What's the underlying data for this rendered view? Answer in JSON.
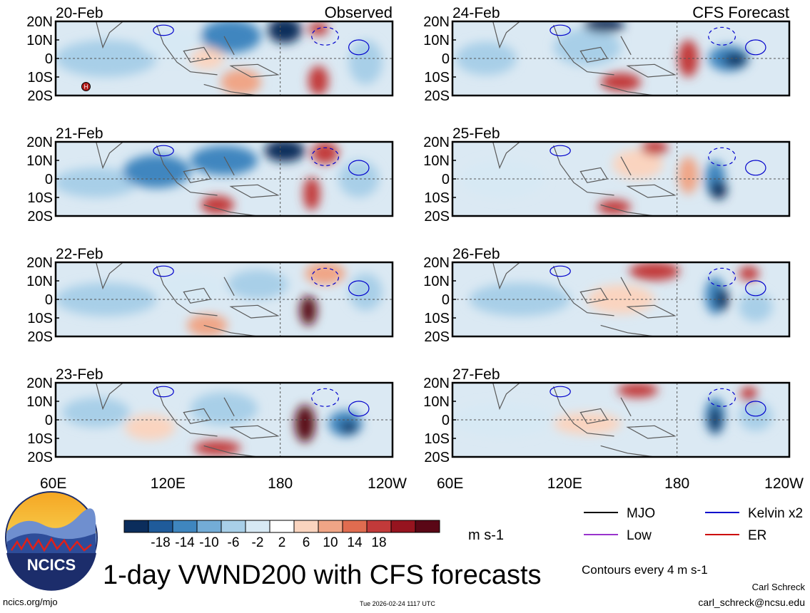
{
  "chart_data": {
    "type": "heatmap",
    "title": "1-day VWND200 with CFS forecasts",
    "variable": "VWND200",
    "units": "m s-1",
    "column_titles": {
      "observed": "Observed",
      "forecast": "CFS Forecast"
    },
    "x_ticks": [
      "60E",
      "120E",
      "180",
      "120W"
    ],
    "y_ticks": [
      "20N",
      "10N",
      "0",
      "10S",
      "20S"
    ],
    "lon_range": [
      60,
      240
    ],
    "lat_range": [
      -20,
      20
    ],
    "panels": [
      {
        "date": "20-Feb",
        "source": "Observed"
      },
      {
        "date": "21-Feb",
        "source": "Observed"
      },
      {
        "date": "22-Feb",
        "source": "Observed"
      },
      {
        "date": "23-Feb",
        "source": "Observed"
      },
      {
        "date": "24-Feb",
        "source": "CFS Forecast"
      },
      {
        "date": "25-Feb",
        "source": "CFS Forecast"
      },
      {
        "date": "26-Feb",
        "source": "CFS Forecast"
      },
      {
        "date": "27-Feb",
        "source": "CFS Forecast"
      }
    ],
    "colorbar": {
      "labels": [
        "-18",
        "-14",
        "-10",
        "-6",
        "-2",
        "2",
        "6",
        "10",
        "14",
        "18"
      ],
      "colors": [
        "#0b2d5c",
        "#1f5b9a",
        "#3f86bf",
        "#73acd6",
        "#a8cfe8",
        "#d7e9f4",
        "#ffffff",
        "#fad4bf",
        "#f0a586",
        "#e06c50",
        "#c23a3a",
        "#96141f",
        "#5a0716"
      ]
    },
    "legend": [
      {
        "label": "MJO",
        "color": "#000000"
      },
      {
        "label": "Kelvin x2",
        "color": "#0000cc"
      },
      {
        "label": "Low",
        "color": "#9933cc"
      },
      {
        "label": "ER",
        "color": "#cc0000"
      }
    ],
    "contour_note": "Contours every 4 m s-1",
    "h_marker": "H"
  },
  "footer": {
    "logo_text": "NCICS",
    "site": "ncics.org/mjo",
    "timestamp": "Tue 2026-02-24 1117 UTC",
    "author": "Carl Schreck",
    "email": "carl_schreck@ncsu.edu"
  }
}
